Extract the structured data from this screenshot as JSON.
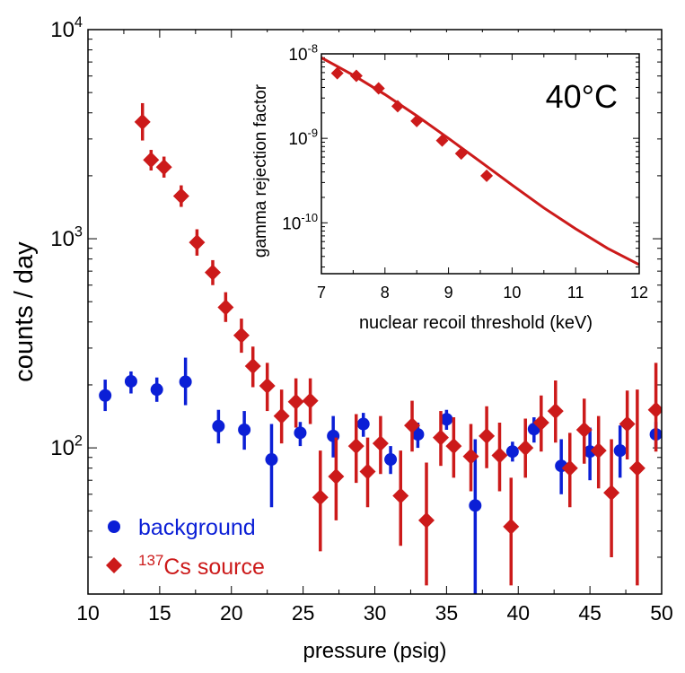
{
  "chart_data": [
    {
      "type": "scatter",
      "xlabel": "pressure (psig)",
      "ylabel": "counts / day",
      "xlim": [
        10,
        50
      ],
      "ylim": [
        20,
        10000
      ],
      "yscale": "log",
      "xticks": [
        "10",
        "15",
        "20",
        "25",
        "30",
        "35",
        "40",
        "45",
        "50"
      ],
      "yticks": [
        {
          "base": "10",
          "exp": "2",
          "value": 100
        },
        {
          "base": "10",
          "exp": "3",
          "value": 1000
        },
        {
          "base": "10",
          "exp": "4",
          "value": 10000
        }
      ],
      "legend": {
        "position": "bottom-left",
        "entries": [
          {
            "label": "background",
            "marker": "circle",
            "color": "#0b1fd6"
          },
          {
            "label_sup": "137",
            "label": "Cs source",
            "marker": "diamond",
            "color": "#cc1a1a"
          }
        ]
      },
      "series": [
        {
          "name": "background",
          "marker": "circle",
          "color": "#0b1fd6",
          "points": [
            {
              "x": 11.2,
              "y": 178,
              "lo": 150,
              "hi": 212
            },
            {
              "x": 13.0,
              "y": 208,
              "lo": 182,
              "hi": 232
            },
            {
              "x": 14.8,
              "y": 190,
              "lo": 166,
              "hi": 217
            },
            {
              "x": 16.8,
              "y": 207,
              "lo": 160,
              "hi": 270
            },
            {
              "x": 19.1,
              "y": 127,
              "lo": 105,
              "hi": 152
            },
            {
              "x": 20.9,
              "y": 122,
              "lo": 98,
              "hi": 150
            },
            {
              "x": 22.8,
              "y": 88,
              "lo": 52,
              "hi": 130
            },
            {
              "x": 24.8,
              "y": 118,
              "lo": 102,
              "hi": 133
            },
            {
              "x": 27.1,
              "y": 114,
              "lo": 90,
              "hi": 142
            },
            {
              "x": 29.2,
              "y": 130,
              "lo": 113,
              "hi": 147
            },
            {
              "x": 31.1,
              "y": 88,
              "lo": 75,
              "hi": 102
            },
            {
              "x": 33.0,
              "y": 116,
              "lo": 100,
              "hi": 132
            },
            {
              "x": 35.0,
              "y": 137,
              "lo": 122,
              "hi": 152
            },
            {
              "x": 37.0,
              "y": 53,
              "lo": 20,
              "hi": 110
            },
            {
              "x": 39.6,
              "y": 96,
              "lo": 86,
              "hi": 107
            },
            {
              "x": 41.1,
              "y": 123,
              "lo": 106,
              "hi": 140
            },
            {
              "x": 43.0,
              "y": 82,
              "lo": 60,
              "hi": 110
            },
            {
              "x": 45.0,
              "y": 96,
              "lo": 70,
              "hi": 125
            },
            {
              "x": 47.1,
              "y": 97,
              "lo": 72,
              "hi": 128
            },
            {
              "x": 49.6,
              "y": 116,
              "lo": 100,
              "hi": 133
            }
          ]
        },
        {
          "name": "137Cs source",
          "marker": "diamond",
          "color": "#cc1a1a",
          "points": [
            {
              "x": 13.8,
              "y": 3620,
              "lo": 2950,
              "hi": 4450
            },
            {
              "x": 14.4,
              "y": 2380,
              "lo": 2120,
              "hi": 2660
            },
            {
              "x": 15.3,
              "y": 2200,
              "lo": 1960,
              "hi": 2470
            },
            {
              "x": 16.5,
              "y": 1600,
              "lo": 1420,
              "hi": 1800
            },
            {
              "x": 17.6,
              "y": 960,
              "lo": 830,
              "hi": 1110
            },
            {
              "x": 18.7,
              "y": 690,
              "lo": 600,
              "hi": 790
            },
            {
              "x": 19.6,
              "y": 470,
              "lo": 400,
              "hi": 555
            },
            {
              "x": 20.7,
              "y": 345,
              "lo": 285,
              "hi": 415
            },
            {
              "x": 21.5,
              "y": 246,
              "lo": 195,
              "hi": 305
            },
            {
              "x": 22.5,
              "y": 198,
              "lo": 150,
              "hi": 255
            },
            {
              "x": 23.5,
              "y": 142,
              "lo": 105,
              "hi": 190
            },
            {
              "x": 24.5,
              "y": 166,
              "lo": 125,
              "hi": 215
            },
            {
              "x": 25.5,
              "y": 168,
              "lo": 130,
              "hi": 215
            },
            {
              "x": 26.2,
              "y": 58,
              "lo": 32,
              "hi": 97
            },
            {
              "x": 27.3,
              "y": 73,
              "lo": 45,
              "hi": 112
            },
            {
              "x": 28.7,
              "y": 102,
              "lo": 68,
              "hi": 145
            },
            {
              "x": 29.5,
              "y": 77,
              "lo": 52,
              "hi": 112
            },
            {
              "x": 30.4,
              "y": 105,
              "lo": 75,
              "hi": 142
            },
            {
              "x": 31.8,
              "y": 59,
              "lo": 34,
              "hi": 97
            },
            {
              "x": 32.6,
              "y": 128,
              "lo": 96,
              "hi": 168
            },
            {
              "x": 33.6,
              "y": 45,
              "lo": 22,
              "hi": 85
            },
            {
              "x": 34.6,
              "y": 112,
              "lo": 82,
              "hi": 150
            },
            {
              "x": 35.5,
              "y": 102,
              "lo": 72,
              "hi": 140
            },
            {
              "x": 36.7,
              "y": 91,
              "lo": 62,
              "hi": 130
            },
            {
              "x": 37.8,
              "y": 114,
              "lo": 80,
              "hi": 158
            },
            {
              "x": 38.7,
              "y": 92,
              "lo": 62,
              "hi": 132
            },
            {
              "x": 39.5,
              "y": 42,
              "lo": 22,
              "hi": 72
            },
            {
              "x": 40.5,
              "y": 100,
              "lo": 72,
              "hi": 138
            },
            {
              "x": 41.6,
              "y": 132,
              "lo": 96,
              "hi": 178
            },
            {
              "x": 42.6,
              "y": 150,
              "lo": 106,
              "hi": 210
            },
            {
              "x": 43.6,
              "y": 80,
              "lo": 52,
              "hi": 118
            },
            {
              "x": 44.6,
              "y": 122,
              "lo": 84,
              "hi": 172
            },
            {
              "x": 45.6,
              "y": 97,
              "lo": 64,
              "hi": 142
            },
            {
              "x": 46.5,
              "y": 61,
              "lo": 30,
              "hi": 110
            },
            {
              "x": 47.6,
              "y": 130,
              "lo": 88,
              "hi": 188
            },
            {
              "x": 48.3,
              "y": 80,
              "lo": 22,
              "hi": 190
            },
            {
              "x": 49.6,
              "y": 152,
              "lo": 96,
              "hi": 255
            }
          ]
        }
      ]
    },
    {
      "type": "line",
      "annotation": "40°C",
      "xlabel": "nuclear recoil threshold (keV)",
      "ylabel": "gamma rejection factor",
      "xlim": [
        7,
        12
      ],
      "ylim": [
        2.5e-11,
        1e-08
      ],
      "yscale": "log",
      "xticks": [
        "7",
        "8",
        "9",
        "10",
        "11",
        "12"
      ],
      "yticks": [
        {
          "base": "10",
          "exp": "-10",
          "value": 1e-10
        },
        {
          "base": "10",
          "exp": "-9",
          "value": 1e-09
        },
        {
          "base": "10",
          "exp": "-8",
          "value": 1e-08
        }
      ],
      "series": [
        {
          "name": "fit",
          "kind": "line",
          "color": "#cc1a1a",
          "x": [
            7.0,
            7.5,
            8.0,
            8.5,
            9.0,
            9.5,
            10.0,
            10.5,
            11.0,
            11.5,
            12.0
          ],
          "y": [
            9e-09,
            5.6e-09,
            3.3e-09,
            1.85e-09,
            1e-09,
            5.3e-10,
            2.8e-10,
            1.5e-10,
            8.5e-11,
            5e-11,
            3.2e-11
          ]
        },
        {
          "name": "data",
          "kind": "markers",
          "marker": "diamond",
          "color": "#cc1a1a",
          "x": [
            7.25,
            7.55,
            7.9,
            8.2,
            8.5,
            8.9,
            9.2,
            9.6
          ],
          "y": [
            5.9e-09,
            5.5e-09,
            3.9e-09,
            2.4e-09,
            1.6e-09,
            9.4e-10,
            6.6e-10,
            3.6e-10
          ]
        }
      ]
    }
  ]
}
